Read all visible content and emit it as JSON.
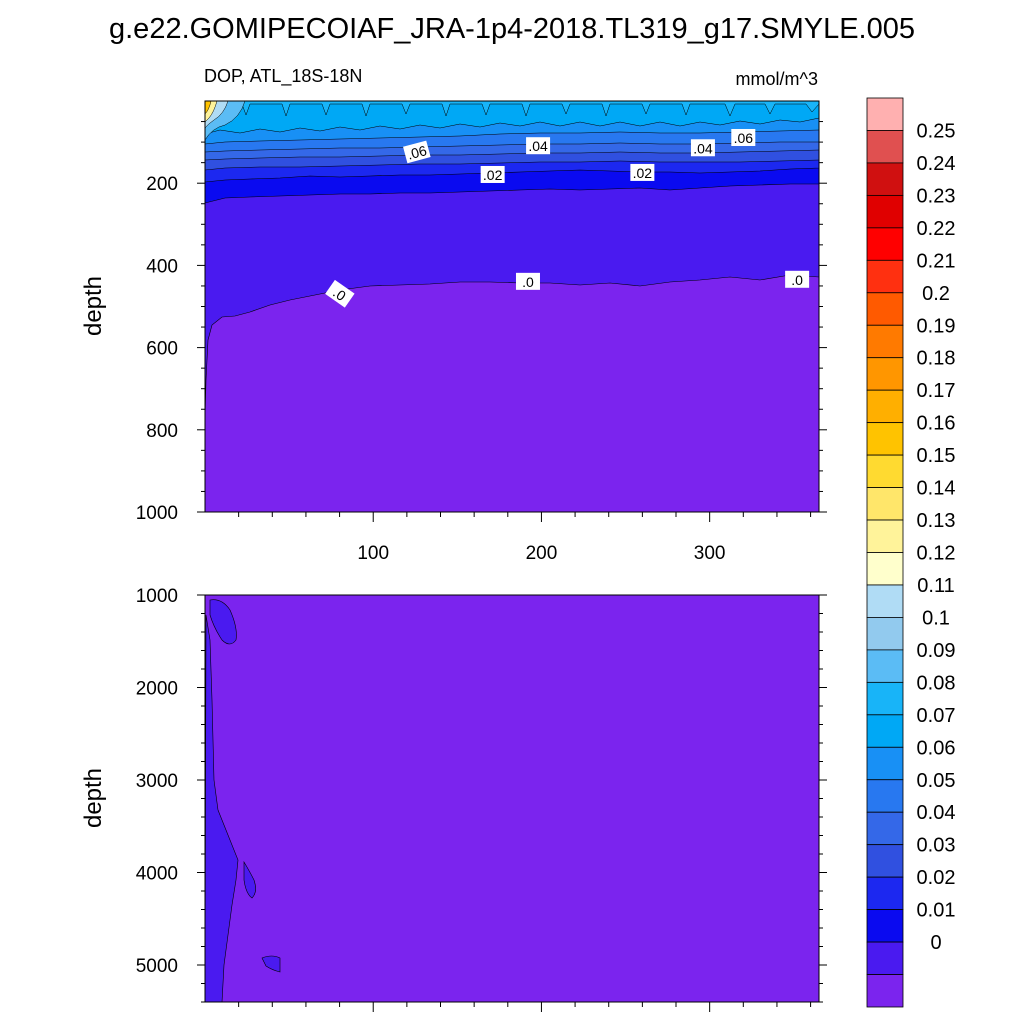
{
  "figure": {
    "title": "g.e22.GOMIPECOIAF_JRA-1p4-2018.TL319_g17.SMYLE.005"
  },
  "chart_data": [
    {
      "type": "contour",
      "title": "DOP, ATL_18S-18N",
      "units": "mmol/m^3",
      "xlabel": "",
      "ylabel": "depth",
      "xlim": [
        0,
        365
      ],
      "ylim": [
        1000,
        0
      ],
      "x_ticks": [
        100,
        200,
        300
      ],
      "y_ticks": [
        200,
        400,
        600,
        800,
        1000
      ],
      "contour_labels": [
        {
          "text": ".06",
          "x": 126,
          "depth": 125
        },
        {
          "text": ".04",
          "x": 198,
          "depth": 110
        },
        {
          "text": ".02",
          "x": 171,
          "depth": 180
        },
        {
          "text": ".02",
          "x": 260,
          "depth": 175
        },
        {
          "text": ".04",
          "x": 296,
          "depth": 115
        },
        {
          "text": ".06",
          "x": 320,
          "depth": 90
        },
        {
          "text": ".0",
          "x": 80,
          "depth": 470
        },
        {
          "text": ".0",
          "x": 192,
          "depth": 440
        },
        {
          "text": ".0",
          "x": 352,
          "depth": 435
        }
      ],
      "level_bands": [
        {
          "depth_top": 0,
          "depth_bottom": 110,
          "value_range": [
            0.08,
            0.09
          ]
        },
        {
          "depth_top": 110,
          "depth_bottom": 160,
          "value_range": [
            0.03,
            0.07
          ]
        },
        {
          "depth_top": 160,
          "depth_bottom": 215,
          "value_range": [
            0.01,
            0.02
          ]
        },
        {
          "depth_top": 215,
          "depth_bottom": 440,
          "value_range": [
            0.0,
            0.01
          ]
        },
        {
          "depth_top": 440,
          "depth_bottom": 1000,
          "value_range": [
            -0.01,
            0.0
          ]
        }
      ],
      "surface_maximum": {
        "x": 2,
        "depth": 10,
        "value": 0.15
      }
    },
    {
      "type": "contour",
      "xlabel": "",
      "ylabel": "depth",
      "xlim": [
        0,
        365
      ],
      "ylim": [
        5400,
        1000
      ],
      "y_ticks": [
        1000,
        2000,
        3000,
        4000,
        5000
      ],
      "level_bands": [
        {
          "depth_top": 1000,
          "depth_bottom": 5400,
          "value_range": [
            -0.01,
            0.0
          ]
        }
      ],
      "patches_value_range": [
        0.0,
        0.01
      ]
    }
  ],
  "colorbar": {
    "labels": [
      "0.25",
      "0.24",
      "0.23",
      "0.22",
      "0.21",
      "0.2",
      "0.19",
      "0.18",
      "0.17",
      "0.16",
      "0.15",
      "0.14",
      "0.13",
      "0.12",
      "0.11",
      "0.1",
      "0.09",
      "0.08",
      "0.07",
      "0.06",
      "0.05",
      "0.04",
      "0.03",
      "0.02",
      "0.01",
      "0"
    ],
    "colors": [
      "#FFB0B0",
      "#E05050",
      "#D01010",
      "#E00000",
      "#FF0000",
      "#FF3010",
      "#FF5A00",
      "#FF7A00",
      "#FF9600",
      "#FFAF00",
      "#FFC300",
      "#FFDA30",
      "#FFE66A",
      "#FFF39A",
      "#FFFFCC",
      "#B0DCF5",
      "#92CAEE",
      "#5BBCF5",
      "#18B4F8",
      "#00A8F5",
      "#1890F5",
      "#2878F0",
      "#3468E8",
      "#3050E0",
      "#1C28F0",
      "#0A0AF0",
      "#4A1AF0",
      "#7B24EE"
    ]
  }
}
